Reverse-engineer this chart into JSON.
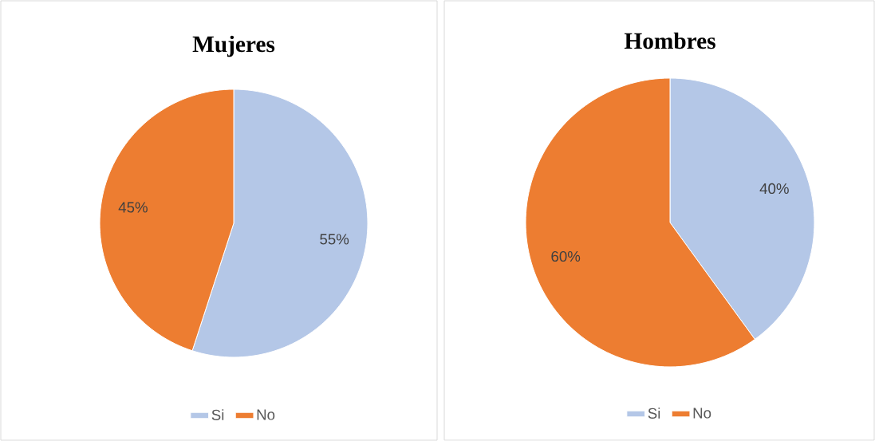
{
  "chart_data": [
    {
      "type": "pie",
      "title": "Mujeres",
      "categories": [
        "Si",
        "No"
      ],
      "values": [
        55,
        45
      ],
      "colors": [
        "#b4c7e7",
        "#ed7d31"
      ],
      "value_labels": [
        "55%",
        "45%"
      ],
      "legend": "bottom"
    },
    {
      "type": "pie",
      "title": "Hombres",
      "categories": [
        "Si",
        "No"
      ],
      "values": [
        40,
        60
      ],
      "colors": [
        "#b4c7e7",
        "#ed7d31"
      ],
      "value_labels": [
        "40%",
        "60%"
      ],
      "legend": "bottom"
    }
  ]
}
